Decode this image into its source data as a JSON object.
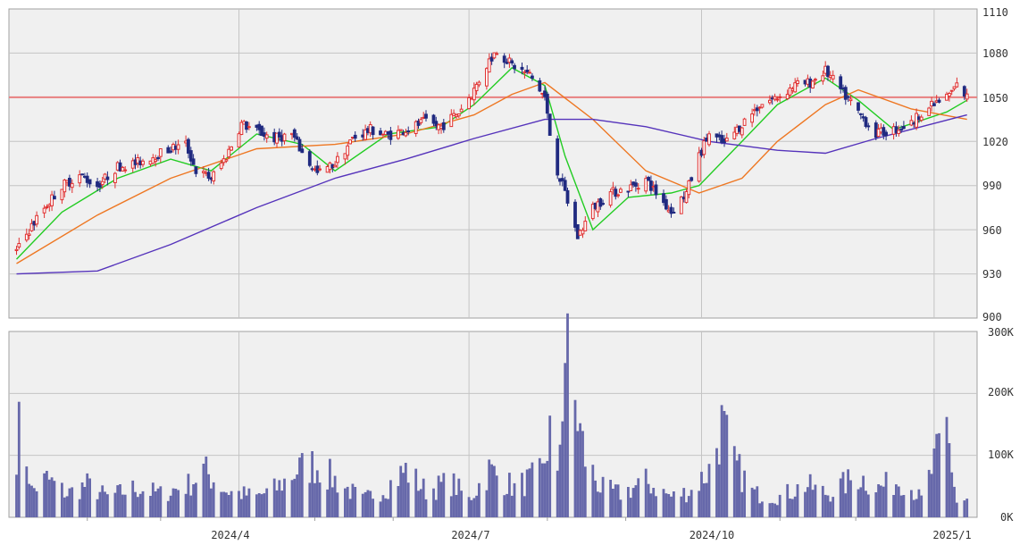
{
  "chart_data": [
    {
      "type": "candlestick",
      "title": "",
      "ylim": [
        900,
        1110
      ],
      "y_ticks": [
        "1110",
        "1080",
        "1050",
        "1020",
        "990",
        "960",
        "930",
        "900"
      ],
      "x_ticks": [
        "2024/4",
        "2024/7",
        "2024/10",
        "2025/1"
      ],
      "reference_line": 1050,
      "colors": {
        "up": "#e03030",
        "down": "#202a80",
        "ma_short": "#22cc22",
        "ma_mid": "#ee7722",
        "ma_long": "#5533bb",
        "reference": "#e88080"
      },
      "close_path": [
        [
          "2024-01-04",
          945
        ],
        [
          "2024-01-09",
          960
        ],
        [
          "2024-01-15",
          975
        ],
        [
          "2024-01-22",
          990
        ],
        [
          "2024-01-29",
          997
        ],
        [
          "2024-02-05",
          990
        ],
        [
          "2024-02-13",
          1003
        ],
        [
          "2024-02-20",
          1005
        ],
        [
          "2024-02-27",
          1010
        ],
        [
          "2024-03-05",
          1015
        ],
        [
          "2024-03-11",
          1018
        ],
        [
          "2024-03-15",
          1000
        ],
        [
          "2024-03-21",
          995
        ],
        [
          "2024-03-27",
          1010
        ],
        [
          "2024-04-02",
          1032
        ],
        [
          "2024-04-08",
          1027
        ],
        [
          "2024-04-15",
          1022
        ],
        [
          "2024-04-22",
          1025
        ],
        [
          "2024-04-26",
          1012
        ],
        [
          "2024-05-02",
          998
        ],
        [
          "2024-05-09",
          1005
        ],
        [
          "2024-05-16",
          1022
        ],
        [
          "2024-05-23",
          1028
        ],
        [
          "2024-05-30",
          1024
        ],
        [
          "2024-06-06",
          1028
        ],
        [
          "2024-06-13",
          1033
        ],
        [
          "2024-06-20",
          1030
        ],
        [
          "2024-06-27",
          1040
        ],
        [
          "2024-07-03",
          1055
        ],
        [
          "2024-07-09",
          1075
        ],
        [
          "2024-07-12",
          1082
        ],
        [
          "2024-07-18",
          1072
        ],
        [
          "2024-07-25",
          1065
        ],
        [
          "2024-07-31",
          1050
        ],
        [
          "2024-08-02",
          1025
        ],
        [
          "2024-08-05",
          1000
        ],
        [
          "2024-08-08",
          985
        ],
        [
          "2024-08-13",
          955
        ],
        [
          "2024-08-19",
          975
        ],
        [
          "2024-08-26",
          985
        ],
        [
          "2024-09-02",
          988
        ],
        [
          "2024-09-09",
          994
        ],
        [
          "2024-09-13",
          985
        ],
        [
          "2024-09-19",
          972
        ],
        [
          "2024-09-25",
          985
        ],
        [
          "2024-09-30",
          1010
        ],
        [
          "2024-10-04",
          1025
        ],
        [
          "2024-10-10",
          1018
        ],
        [
          "2024-10-17",
          1032
        ],
        [
          "2024-10-24",
          1045
        ],
        [
          "2024-10-31",
          1050
        ],
        [
          "2024-11-07",
          1058
        ],
        [
          "2024-11-13",
          1060
        ],
        [
          "2024-11-19",
          1068
        ],
        [
          "2024-11-25",
          1055
        ],
        [
          "2024-12-02",
          1040
        ],
        [
          "2024-12-09",
          1025
        ],
        [
          "2024-12-16",
          1028
        ],
        [
          "2024-12-23",
          1032
        ],
        [
          "2024-12-27",
          1040
        ],
        [
          "2025-01-06",
          1050
        ],
        [
          "2025-01-10",
          1058
        ],
        [
          "2025-01-14",
          1050
        ]
      ],
      "moving_averages": [
        {
          "key": "ma_short",
          "points": [
            [
              "2024-01-04",
              940
            ],
            [
              "2024-01-22",
              972
            ],
            [
              "2024-02-13",
              995
            ],
            [
              "2024-03-05",
              1008
            ],
            [
              "2024-03-21",
              1000
            ],
            [
              "2024-04-08",
              1025
            ],
            [
              "2024-04-26",
              1018
            ],
            [
              "2024-05-09",
              1000
            ],
            [
              "2024-05-30",
              1025
            ],
            [
              "2024-06-20",
              1030
            ],
            [
              "2024-07-03",
              1045
            ],
            [
              "2024-07-18",
              1070
            ],
            [
              "2024-07-31",
              1058
            ],
            [
              "2024-08-08",
              1010
            ],
            [
              "2024-08-19",
              960
            ],
            [
              "2024-09-02",
              982
            ],
            [
              "2024-09-19",
              985
            ],
            [
              "2024-09-30",
              990
            ],
            [
              "2024-10-17",
              1020
            ],
            [
              "2024-10-31",
              1045
            ],
            [
              "2024-11-19",
              1063
            ],
            [
              "2024-12-02",
              1048
            ],
            [
              "2024-12-16",
              1028
            ],
            [
              "2025-01-06",
              1040
            ],
            [
              "2025-01-14",
              1048
            ]
          ]
        },
        {
          "key": "ma_mid",
          "points": [
            [
              "2024-01-04",
              937
            ],
            [
              "2024-02-05",
              970
            ],
            [
              "2024-03-05",
              995
            ],
            [
              "2024-04-08",
              1015
            ],
            [
              "2024-05-09",
              1018
            ],
            [
              "2024-06-06",
              1025
            ],
            [
              "2024-07-03",
              1038
            ],
            [
              "2024-07-18",
              1052
            ],
            [
              "2024-07-31",
              1060
            ],
            [
              "2024-08-19",
              1035
            ],
            [
              "2024-09-09",
              1000
            ],
            [
              "2024-09-30",
              985
            ],
            [
              "2024-10-17",
              995
            ],
            [
              "2024-10-31",
              1020
            ],
            [
              "2024-11-19",
              1045
            ],
            [
              "2024-12-02",
              1055
            ],
            [
              "2024-12-23",
              1042
            ],
            [
              "2025-01-14",
              1035
            ]
          ]
        },
        {
          "key": "ma_long",
          "points": [
            [
              "2024-01-04",
              930
            ],
            [
              "2024-02-05",
              932
            ],
            [
              "2024-03-05",
              950
            ],
            [
              "2024-04-08",
              975
            ],
            [
              "2024-05-09",
              995
            ],
            [
              "2024-06-06",
              1008
            ],
            [
              "2024-07-03",
              1022
            ],
            [
              "2024-07-31",
              1035
            ],
            [
              "2024-08-19",
              1035
            ],
            [
              "2024-09-09",
              1030
            ],
            [
              "2024-10-04",
              1020
            ],
            [
              "2024-10-31",
              1014
            ],
            [
              "2024-11-19",
              1012
            ],
            [
              "2024-12-09",
              1022
            ],
            [
              "2024-12-27",
              1030
            ],
            [
              "2025-01-14",
              1038
            ]
          ]
        }
      ]
    },
    {
      "type": "bar",
      "title": "",
      "ylim": [
        0,
        300000
      ],
      "y_ticks": [
        "300K",
        "200K",
        "100K",
        "0K"
      ],
      "x_ticks": [
        "2024/4",
        "2024/7",
        "2024/10",
        "2025/1"
      ],
      "color": "#6668aa",
      "volume_path": [
        [
          "2024-01-04",
          125000
        ],
        [
          "2024-01-06",
          165000
        ],
        [
          "2024-01-10",
          45000
        ],
        [
          "2024-01-16",
          65000
        ],
        [
          "2024-01-24",
          40000
        ],
        [
          "2024-02-01",
          55000
        ],
        [
          "2024-02-09",
          35000
        ],
        [
          "2024-02-20",
          50000
        ],
        [
          "2024-03-01",
          40000
        ],
        [
          "2024-03-12",
          55000
        ],
        [
          "2024-03-18",
          80000
        ],
        [
          "2024-03-27",
          45000
        ],
        [
          "2024-04-08",
          35000
        ],
        [
          "2024-04-16",
          50000
        ],
        [
          "2024-04-24",
          80000
        ],
        [
          "2024-05-01",
          90000
        ],
        [
          "2024-05-10",
          60000
        ],
        [
          "2024-05-20",
          30000
        ],
        [
          "2024-05-29",
          50000
        ],
        [
          "2024-06-06",
          80000
        ],
        [
          "2024-06-14",
          45000
        ],
        [
          "2024-06-24",
          60000
        ],
        [
          "2024-07-01",
          30000
        ],
        [
          "2024-07-09",
          80000
        ],
        [
          "2024-07-19",
          50000
        ],
        [
          "2024-07-30",
          75000
        ],
        [
          "2024-08-02",
          145000
        ],
        [
          "2024-08-05",
          60000
        ],
        [
          "2024-08-08",
          285000
        ],
        [
          "2024-08-12",
          190000
        ],
        [
          "2024-08-16",
          100000
        ],
        [
          "2024-08-22",
          50000
        ],
        [
          "2024-08-30",
          40000
        ],
        [
          "2024-09-09",
          60000
        ],
        [
          "2024-09-19",
          35000
        ],
        [
          "2024-09-27",
          45000
        ],
        [
          "2024-10-04",
          80000
        ],
        [
          "2024-10-09",
          155000
        ],
        [
          "2024-10-14",
          90000
        ],
        [
          "2024-10-22",
          40000
        ],
        [
          "2024-11-01",
          35000
        ],
        [
          "2024-11-11",
          55000
        ],
        [
          "2024-11-20",
          40000
        ],
        [
          "2024-12-02",
          70000
        ],
        [
          "2024-12-10",
          50000
        ],
        [
          "2024-12-20",
          65000
        ],
        [
          "2024-12-27",
          30000
        ],
        [
          "2025-01-06",
          150000
        ],
        [
          "2025-01-10",
          25000
        ],
        [
          "2025-01-14",
          30000
        ]
      ]
    }
  ]
}
